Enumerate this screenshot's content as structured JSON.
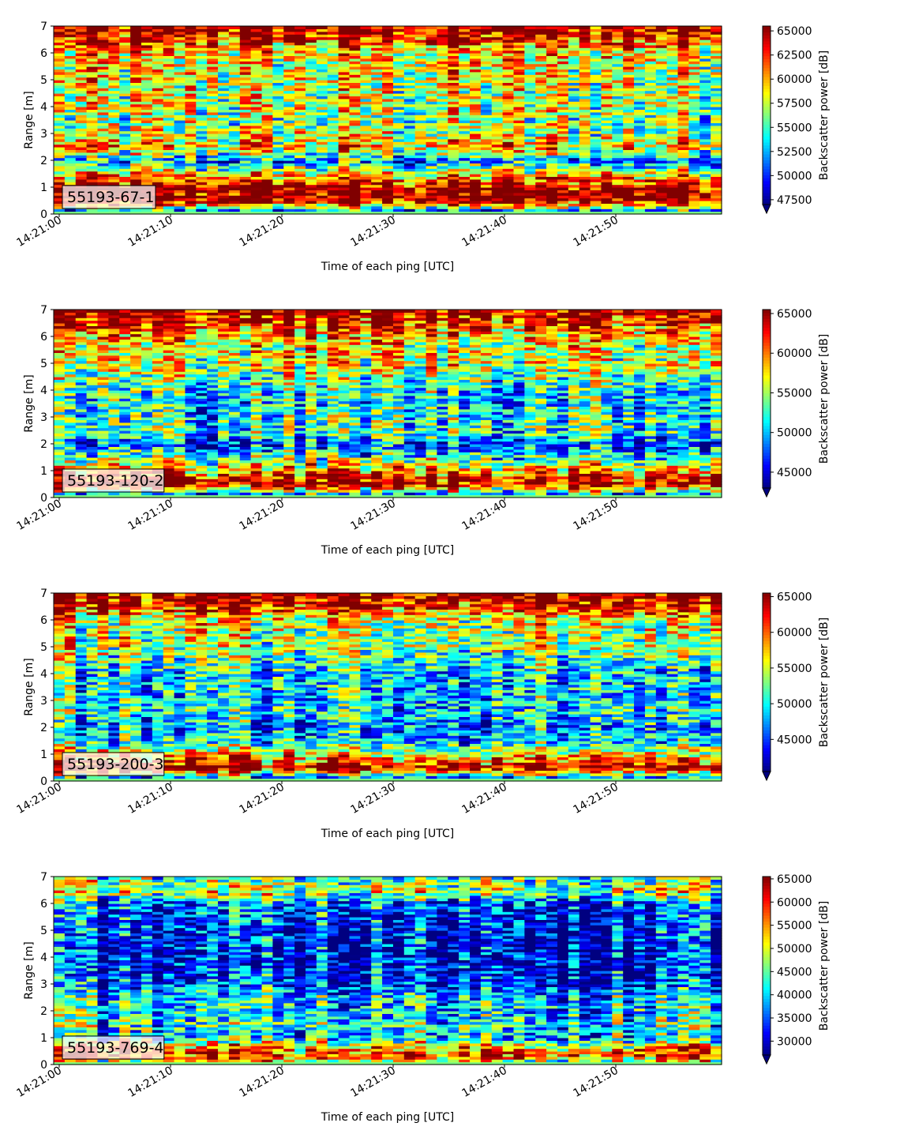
{
  "figure": {
    "x_tick_labels": [
      "14:21:00",
      "14:21:10",
      "14:21:20",
      "14:21:30",
      "14:21:40",
      "14:21:50"
    ],
    "y_tick_labels": [
      "0",
      "1",
      "2",
      "3",
      "4",
      "5",
      "6",
      "7"
    ]
  },
  "chart_data": [
    {
      "type": "heatmap",
      "label": "55193-67-1",
      "xlabel": "Time of each ping [UTC]",
      "ylabel": "Range [m]",
      "colorbar_label": "Backscatter power [dB]",
      "colormap": "jet",
      "x_range": [
        "14:21:00",
        "14:22:00"
      ],
      "ylim": [
        0,
        7
      ],
      "vmin": 47000,
      "vmax": 65500,
      "colorbar_ticks": [
        47500,
        50000,
        52500,
        55000,
        57500,
        60000,
        62500,
        65000
      ],
      "colorbar_tick_labels": [
        "47500",
        "50000",
        "52500",
        "55000",
        "57500",
        "60000",
        "62500",
        "65000"
      ],
      "colorbar_extend": "min",
      "profile": {
        "range_m": [
          0.15,
          0.5,
          1.0,
          1.5,
          2.0,
          2.5,
          3.0,
          3.5,
          4.0,
          4.5,
          5.0,
          5.5,
          6.0,
          6.5,
          7.0
        ],
        "mean_level": [
          0.3,
          1.0,
          0.98,
          0.65,
          0.25,
          0.7,
          0.55,
          0.5,
          0.55,
          0.55,
          0.6,
          0.6,
          0.65,
          0.85,
          1.0
        ]
      }
    },
    {
      "type": "heatmap",
      "label": "55193-120-2",
      "xlabel": "Time of each ping [UTC]",
      "ylabel": "Range [m]",
      "colorbar_label": "Backscatter power [dB]",
      "colormap": "jet",
      "x_range": [
        "14:21:00",
        "14:22:00"
      ],
      "ylim": [
        0,
        7
      ],
      "vmin": 43000,
      "vmax": 65500,
      "colorbar_ticks": [
        45000,
        50000,
        55000,
        60000,
        65000
      ],
      "colorbar_tick_labels": [
        "45000",
        "50000",
        "55000",
        "60000",
        "65000"
      ],
      "colorbar_extend": "min",
      "profile": {
        "range_m": [
          0.15,
          0.5,
          1.0,
          1.5,
          2.0,
          2.5,
          3.0,
          3.5,
          4.0,
          4.5,
          5.0,
          5.5,
          6.0,
          6.5,
          7.0
        ],
        "mean_level": [
          0.3,
          1.0,
          0.75,
          0.45,
          0.2,
          0.45,
          0.4,
          0.38,
          0.4,
          0.5,
          0.6,
          0.6,
          0.68,
          0.9,
          1.0
        ]
      }
    },
    {
      "type": "heatmap",
      "label": "55193-200-3",
      "xlabel": "Time of each ping [UTC]",
      "ylabel": "Range [m]",
      "colorbar_label": "Backscatter power [dB]",
      "colormap": "jet",
      "x_range": [
        "14:21:00",
        "14:22:00"
      ],
      "ylim": [
        0,
        7
      ],
      "vmin": 40500,
      "vmax": 65500,
      "colorbar_ticks": [
        45000,
        50000,
        55000,
        60000,
        65000
      ],
      "colorbar_tick_labels": [
        "45000",
        "50000",
        "55000",
        "60000",
        "65000"
      ],
      "colorbar_extend": "min",
      "profile": {
        "range_m": [
          0.15,
          0.5,
          1.0,
          1.5,
          2.0,
          2.5,
          3.0,
          3.5,
          4.0,
          4.5,
          5.0,
          5.5,
          6.0,
          6.5,
          7.0
        ],
        "mean_level": [
          0.3,
          1.0,
          0.65,
          0.35,
          0.28,
          0.38,
          0.35,
          0.35,
          0.35,
          0.45,
          0.55,
          0.55,
          0.6,
          0.88,
          1.0
        ]
      }
    },
    {
      "type": "heatmap",
      "label": "55193-769-4",
      "xlabel": "Time of each ping [UTC]",
      "ylabel": "Range [m]",
      "colorbar_label": "Backscatter power [dB]",
      "colormap": "jet",
      "x_range": [
        "14:21:00",
        "14:22:00"
      ],
      "ylim": [
        0,
        7
      ],
      "vmin": 27000,
      "vmax": 65500,
      "colorbar_ticks": [
        30000,
        35000,
        40000,
        45000,
        50000,
        55000,
        60000,
        65000
      ],
      "colorbar_tick_labels": [
        "30000",
        "35000",
        "40000",
        "45000",
        "50000",
        "55000",
        "60000",
        "65000"
      ],
      "colorbar_extend": "min",
      "profile": {
        "range_m": [
          0.15,
          0.3,
          0.6,
          1.0,
          1.5,
          2.0,
          2.5,
          3.0,
          3.5,
          4.0,
          4.5,
          5.0,
          5.5,
          6.0,
          6.5,
          7.0
        ],
        "mean_level": [
          0.6,
          0.85,
          0.75,
          0.35,
          0.4,
          0.35,
          0.35,
          0.18,
          0.15,
          0.12,
          0.13,
          0.15,
          0.18,
          0.22,
          0.6,
          0.45
        ]
      }
    }
  ]
}
